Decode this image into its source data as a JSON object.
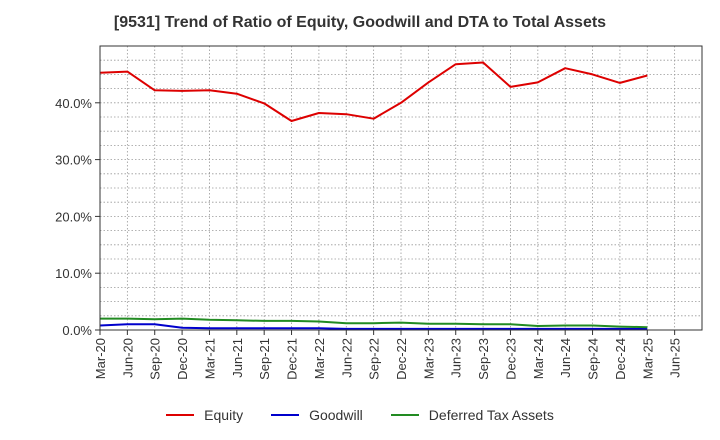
{
  "chart_data": {
    "type": "line",
    "title": "[9531]  Trend of Ratio of Equity, Goodwill and DTA to Total Assets",
    "xlabel": "",
    "ylabel": "",
    "x": [
      "Mar-20",
      "Jun-20",
      "Sep-20",
      "Dec-20",
      "Mar-21",
      "Jun-21",
      "Sep-21",
      "Dec-21",
      "Mar-22",
      "Jun-22",
      "Sep-22",
      "Dec-22",
      "Mar-23",
      "Jun-23",
      "Sep-23",
      "Dec-23",
      "Mar-24",
      "Jun-24",
      "Sep-24",
      "Dec-24",
      "Mar-25",
      "Jun-25"
    ],
    "ylim": [
      0,
      50
    ],
    "yticks": [
      0,
      10,
      20,
      30,
      40
    ],
    "ytick_labels": [
      "0.0%",
      "10.0%",
      "20.0%",
      "30.0%",
      "40.0%"
    ],
    "grid": true,
    "legend_position": "bottom",
    "series": [
      {
        "name": "Equity",
        "color": "#dd0000",
        "values": [
          45.3,
          45.5,
          42.2,
          42.1,
          42.2,
          41.6,
          39.9,
          36.8,
          38.2,
          38.0,
          37.2,
          40.0,
          43.6,
          46.8,
          47.1,
          42.8,
          43.6,
          46.1,
          45.0,
          43.5,
          44.8,
          null
        ]
      },
      {
        "name": "Goodwill",
        "color": "#0000cc",
        "values": [
          0.8,
          1.0,
          1.0,
          0.4,
          0.3,
          0.3,
          0.3,
          0.3,
          0.3,
          0.2,
          0.2,
          0.2,
          0.2,
          0.2,
          0.2,
          0.2,
          0.2,
          0.2,
          0.2,
          0.2,
          0.2,
          null
        ]
      },
      {
        "name": "Deferred Tax Assets",
        "color": "#228b22",
        "values": [
          2.0,
          2.0,
          1.9,
          2.0,
          1.8,
          1.7,
          1.6,
          1.6,
          1.5,
          1.2,
          1.2,
          1.3,
          1.1,
          1.1,
          1.0,
          1.0,
          0.7,
          0.8,
          0.8,
          0.6,
          0.5,
          null
        ]
      }
    ]
  }
}
